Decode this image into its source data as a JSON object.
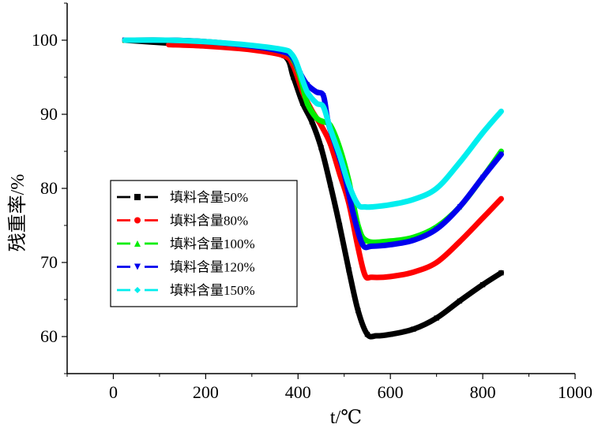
{
  "chart_data": {
    "type": "line",
    "xlabel": "t/℃",
    "ylabel": "残重率/%",
    "xlim": [
      -100,
      1000
    ],
    "ylim": [
      55,
      105
    ],
    "x_ticks": [
      0,
      200,
      400,
      600,
      800,
      1000
    ],
    "y_ticks": [
      60,
      70,
      80,
      90,
      100
    ],
    "grid": false,
    "legend_position": "left-middle",
    "series": [
      {
        "name": "填料含量50%",
        "color": "#000000",
        "marker": "square",
        "x": [
          25,
          120,
          200,
          300,
          370,
          390,
          410,
          430,
          450,
          470,
          490,
          510,
          530,
          550,
          570,
          600,
          650,
          700,
          750,
          800,
          840
        ],
        "y": [
          100,
          99.6,
          99.3,
          98.8,
          97.9,
          95.0,
          91.5,
          89.0,
          85.5,
          80.5,
          75.0,
          69.0,
          63.5,
          60.3,
          60.1,
          60.3,
          61.0,
          62.5,
          64.8,
          67.0,
          68.6
        ]
      },
      {
        "name": "填料含量80%",
        "color": "#ff0000",
        "marker": "circle",
        "x": [
          120,
          200,
          300,
          370,
          390,
          410,
          430,
          450,
          470,
          490,
          510,
          530,
          545,
          560,
          600,
          650,
          700,
          750,
          800,
          840
        ],
        "y": [
          99.4,
          99.2,
          98.7,
          97.9,
          96.5,
          93.0,
          90.5,
          88.5,
          86.0,
          82.0,
          78.0,
          72.0,
          68.3,
          68.0,
          68.1,
          68.7,
          70.0,
          72.8,
          76.0,
          78.6
        ]
      },
      {
        "name": "填料含量100%",
        "color": "#00ee00",
        "marker": "triangle-up",
        "x": [
          25,
          120,
          200,
          300,
          370,
          390,
          405,
          420,
          440,
          455,
          470,
          490,
          510,
          530,
          550,
          600,
          650,
          700,
          750,
          800,
          840
        ],
        "y": [
          100,
          100,
          99.8,
          99.2,
          98.4,
          97.3,
          95.0,
          91.5,
          89.5,
          89.0,
          88.5,
          85.5,
          81.0,
          75.0,
          72.9,
          72.9,
          73.4,
          74.8,
          77.5,
          81.5,
          85.0
        ]
      },
      {
        "name": "填料含量120%",
        "color": "#0000ee",
        "marker": "triangle-down",
        "x": [
          25,
          120,
          200,
          300,
          370,
          390,
          405,
          420,
          440,
          455,
          465,
          480,
          500,
          520,
          540,
          560,
          600,
          650,
          700,
          750,
          800,
          840
        ],
        "y": [
          100,
          100,
          99.8,
          99.2,
          98.4,
          97.5,
          95.5,
          94.0,
          93.0,
          92.5,
          89.0,
          86.0,
          82.0,
          76.5,
          72.4,
          72.2,
          72.4,
          73.0,
          74.5,
          77.5,
          81.5,
          84.6
        ]
      },
      {
        "name": "填料含量150%",
        "color": "#00eeee",
        "marker": "diamond",
        "x": [
          25,
          120,
          200,
          300,
          370,
          385,
          395,
          405,
          420,
          440,
          455,
          470,
          490,
          510,
          530,
          545,
          560,
          600,
          650,
          700,
          750,
          800,
          840
        ],
        "y": [
          100,
          100,
          99.8,
          99.3,
          98.7,
          98.2,
          97.2,
          95.5,
          93.0,
          91.5,
          91.0,
          88.0,
          84.5,
          80.5,
          77.8,
          77.5,
          77.5,
          77.8,
          78.5,
          80.0,
          83.5,
          87.5,
          90.4
        ]
      }
    ]
  }
}
